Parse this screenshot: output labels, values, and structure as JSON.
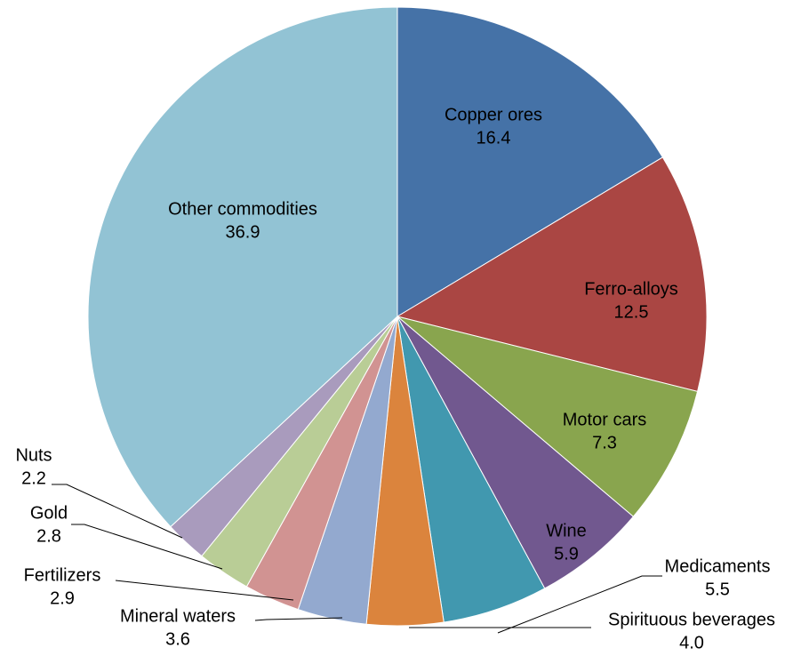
{
  "chart_data": {
    "type": "pie",
    "categories": [
      "Copper ores",
      "Ferro-alloys",
      "Motor cars",
      "Wine",
      "Medicaments",
      "Spirituous beverages",
      "Mineral waters",
      "Fertilizers",
      "Gold",
      "Nuts",
      "Other commodities"
    ],
    "values": [
      16.4,
      12.5,
      7.3,
      5.9,
      5.5,
      4.0,
      3.6,
      2.9,
      2.8,
      2.2,
      36.9
    ],
    "value_labels": [
      "16.4",
      "12.5",
      "7.3",
      "5.9",
      "5.5",
      "4.0",
      "3.6",
      "2.9",
      "2.8",
      "2.2",
      "36.9"
    ],
    "colors": [
      "#4572a7",
      "#aa4643",
      "#89a54e",
      "#71588f",
      "#4198af",
      "#db843d",
      "#93a9cf",
      "#d19392",
      "#b9cd96",
      "#a99bbd",
      "#92c3d4"
    ]
  }
}
